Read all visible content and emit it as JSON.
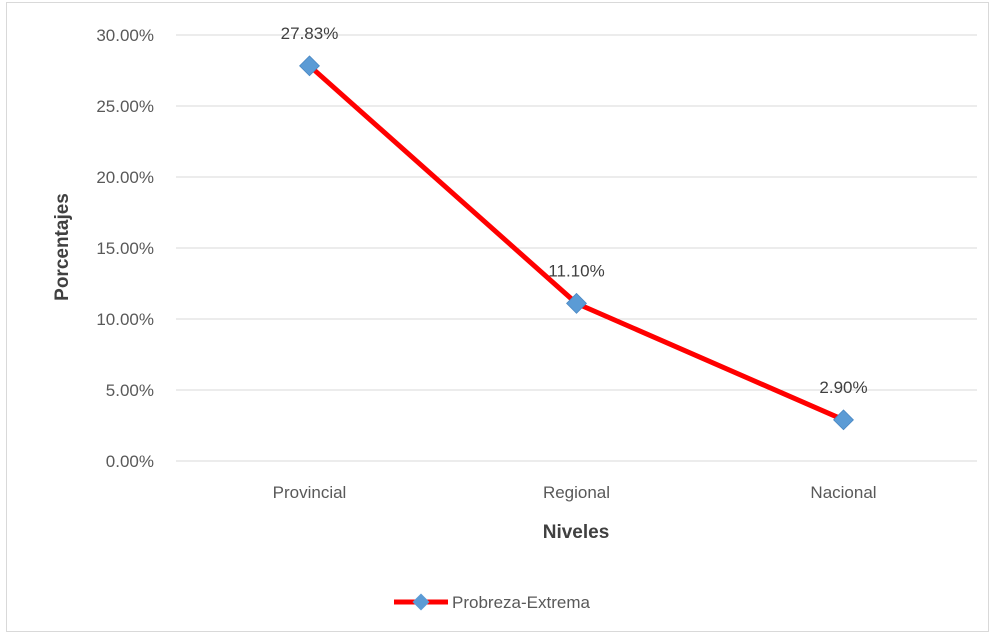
{
  "chart_data": {
    "type": "line",
    "categories": [
      "Provincial",
      "Regional",
      "Nacional"
    ],
    "series": [
      {
        "name": "Probreza-Extrema",
        "values": [
          27.83,
          11.1,
          2.9
        ],
        "labels": [
          "27.83%",
          "11.10%",
          "2.90%"
        ],
        "color": "#ff0000",
        "marker_color": "#5b9bd5",
        "marker": "diamond"
      }
    ],
    "xlabel": "Niveles",
    "ylabel": "Porcentajes",
    "ylim": [
      0,
      30
    ],
    "yticks": [
      0,
      5,
      10,
      15,
      20,
      25,
      30
    ],
    "ytick_labels": [
      "0.00%",
      "5.00%",
      "10.00%",
      "15.00%",
      "20.00%",
      "25.00%",
      "30.00%"
    ],
    "grid": true,
    "legend": "bottom",
    "colors": {
      "gridline": "#d9d9d9",
      "text": "#595959"
    }
  }
}
